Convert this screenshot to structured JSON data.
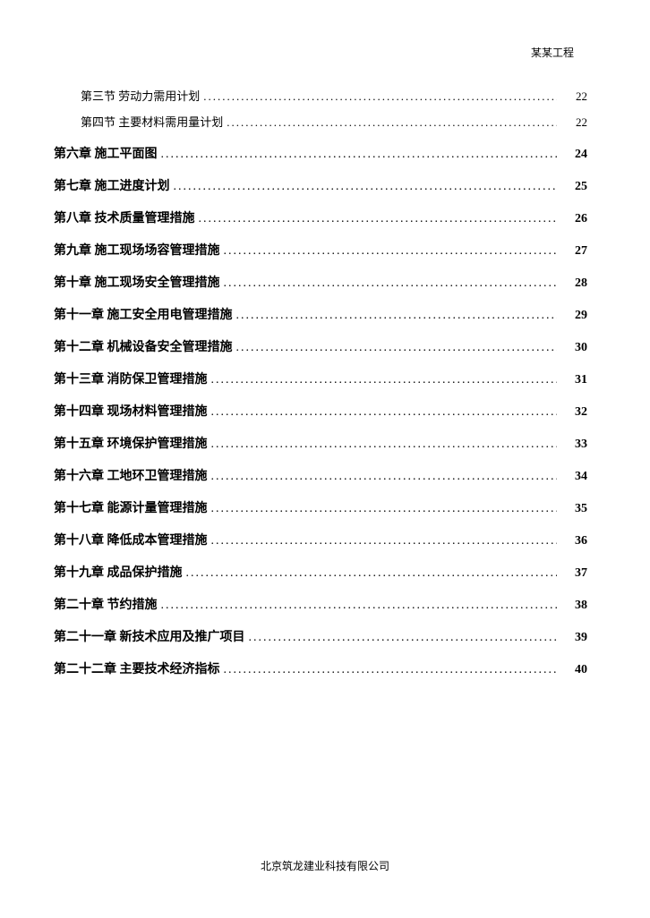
{
  "header": {
    "project_name": "某某工程"
  },
  "toc": {
    "entries": [
      {
        "level": "sub",
        "title": "第三节  劳动力需用计划",
        "page": "22"
      },
      {
        "level": "sub",
        "title": "第四节  主要材料需用量计划",
        "page": "22"
      },
      {
        "level": "chapter",
        "title": "第六章  施工平面图",
        "page": "24"
      },
      {
        "level": "chapter",
        "title": "第七章  施工进度计划",
        "page": "25"
      },
      {
        "level": "chapter",
        "title": "第八章  技术质量管理措施",
        "page": "26"
      },
      {
        "level": "chapter",
        "title": "第九章  施工现场场容管理措施",
        "page": "27"
      },
      {
        "level": "chapter",
        "title": "第十章  施工现场安全管理措施",
        "page": "28"
      },
      {
        "level": "chapter",
        "title": "第十一章  施工安全用电管理措施",
        "page": "29"
      },
      {
        "level": "chapter",
        "title": "第十二章  机械设备安全管理措施",
        "page": "30"
      },
      {
        "level": "chapter",
        "title": "第十三章  消防保卫管理措施",
        "page": "31"
      },
      {
        "level": "chapter",
        "title": "第十四章  现场材料管理措施",
        "page": "32"
      },
      {
        "level": "chapter",
        "title": "第十五章  环境保护管理措施",
        "page": "33"
      },
      {
        "level": "chapter",
        "title": "第十六章  工地环卫管理措施",
        "page": "34"
      },
      {
        "level": "chapter",
        "title": "第十七章  能源计量管理措施",
        "page": "35"
      },
      {
        "level": "chapter",
        "title": "第十八章  降低成本管理措施",
        "page": "36"
      },
      {
        "level": "chapter",
        "title": "第十九章  成品保护措施",
        "page": "37"
      },
      {
        "level": "chapter",
        "title": "第二十章  节约措施",
        "page": "38"
      },
      {
        "level": "chapter",
        "title": "第二十一章  新技术应用及推广项目",
        "page": "39"
      },
      {
        "level": "chapter",
        "title": "第二十二章  主要技术经济指标",
        "page": "40"
      }
    ]
  },
  "footer": {
    "company": "北京筑龙建业科技有限公司"
  }
}
